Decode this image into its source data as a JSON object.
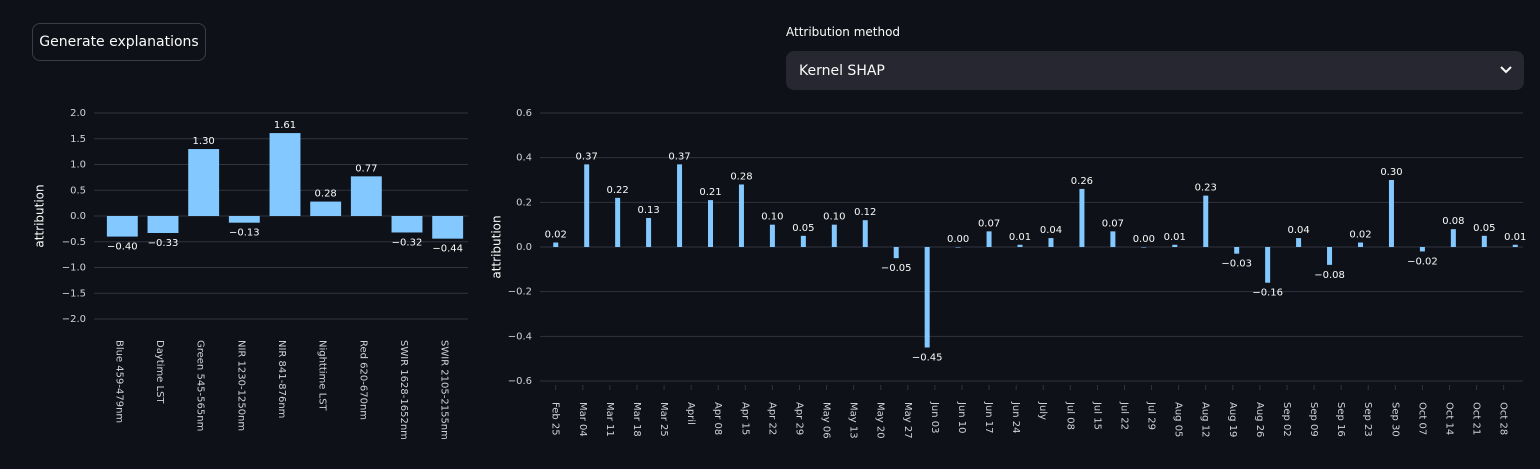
{
  "button": "Generate explanations",
  "select": {
    "label": "Attribution method",
    "value": "Kernel SHAP"
  },
  "chart_data": [
    {
      "type": "bar",
      "y_label": "attribution",
      "color": "#83c9ff",
      "grid": true,
      "categories": [
        "Blue 459-479nm",
        "Daytime LST",
        "Green 545-565nm",
        "NIR 1230-1250nm",
        "NIR 841-876nm",
        "Nighttime LST",
        "Red 620-670nm",
        "SWIR 1628-1652nm",
        "SWIR 2105-2155nm"
      ],
      "values": [
        -0.4,
        -0.33,
        1.3,
        -0.13,
        1.61,
        0.28,
        0.77,
        -0.32,
        -0.44
      ],
      "value_labels": [
        "−0.40",
        "−0.33",
        "1.30",
        "−0.13",
        "1.61",
        "0.28",
        "0.77",
        "−0.32",
        "−0.44"
      ],
      "ylim": [
        -2,
        2
      ],
      "yticks": [
        {
          "value": 2,
          "label": "2.0"
        },
        1.5,
        {
          "value": 1,
          "label": "1.0"
        },
        0.5,
        {
          "value": 0,
          "label": "0.0"
        },
        {
          "value": -0.5,
          "label": "−0.5"
        },
        {
          "value": -1,
          "label": "−1.0"
        },
        {
          "value": -1.5,
          "label": "−1.5"
        },
        {
          "value": -2,
          "label": "−2.0"
        }
      ]
    },
    {
      "type": "timebar",
      "y_label": "attribution",
      "color": "#83c9ff",
      "grid": true,
      "x": [
        0,
        8,
        16,
        24,
        32,
        40,
        48,
        56,
        64,
        72,
        80,
        88,
        96,
        104,
        112,
        120,
        128,
        136,
        144,
        152,
        160,
        168,
        176,
        184,
        192,
        200,
        208,
        216,
        224,
        232,
        240,
        248
      ],
      "values": [
        0.02,
        0.37,
        0.22,
        0.13,
        0.37,
        0.21,
        0.28,
        0.1,
        0.05,
        0.1,
        0.12,
        -0.05,
        -0.45,
        0.0,
        0.07,
        0.01,
        0.04,
        0.26,
        0.07,
        0.0,
        0.01,
        0.23,
        -0.03,
        -0.16,
        0.04,
        -0.08,
        0.02,
        0.3,
        -0.02,
        0.08,
        0.05,
        0.01
      ],
      "value_labels": [
        "0.02",
        "0.37",
        "0.22",
        "0.13",
        "0.37",
        "0.21",
        "0.28",
        "0.10",
        "0.05",
        "0.10",
        "0.12",
        "−0.05",
        "−0.45",
        "0.00",
        "0.07",
        "0.01",
        "0.04",
        "0.26",
        "0.07",
        "0.00",
        "0.01",
        "0.23",
        "−0.03",
        "−0.16",
        "0.04",
        "−0.08",
        "0.02",
        "0.30",
        "−0.02",
        "0.08",
        "0.05",
        "0.01"
      ],
      "xlim": [
        -2,
        250
      ],
      "xticks": [
        {
          "value": 0,
          "label": "Feb 25"
        },
        {
          "value": 7,
          "label": "Mar 04"
        },
        {
          "value": 14,
          "label": "Mar 11"
        },
        {
          "value": 21,
          "label": "Mar 18"
        },
        {
          "value": 28,
          "label": "Mar 25"
        },
        {
          "value": 35,
          "label": "April"
        },
        {
          "value": 42,
          "label": "Apr 08"
        },
        {
          "value": 49,
          "label": "Apr 15"
        },
        {
          "value": 56,
          "label": "Apr 22"
        },
        {
          "value": 63,
          "label": "Apr 29"
        },
        {
          "value": 70,
          "label": "May 06"
        },
        {
          "value": 77,
          "label": "May 13"
        },
        {
          "value": 84,
          "label": "May 20"
        },
        {
          "value": 91,
          "label": "May 27"
        },
        {
          "value": 98,
          "label": "Jun 03"
        },
        {
          "value": 105,
          "label": "Jun 10"
        },
        {
          "value": 112,
          "label": "Jun 17"
        },
        {
          "value": 119,
          "label": "Jun 24"
        },
        {
          "value": 126,
          "label": "July"
        },
        {
          "value": 133,
          "label": "Jul 08"
        },
        {
          "value": 140,
          "label": "Jul 15"
        },
        {
          "value": 147,
          "label": "Jul 22"
        },
        {
          "value": 154,
          "label": "Jul 29"
        },
        {
          "value": 161,
          "label": "Aug 05"
        },
        {
          "value": 168,
          "label": "Aug 12"
        },
        {
          "value": 175,
          "label": "Aug 19"
        },
        {
          "value": 182,
          "label": "Aug 26"
        },
        {
          "value": 189,
          "label": "Sep 02"
        },
        {
          "value": 196,
          "label": "Sep 09"
        },
        {
          "value": 203,
          "label": "Sep 16"
        },
        {
          "value": 210,
          "label": "Sep 23"
        },
        {
          "value": 217,
          "label": "Sep 30"
        },
        {
          "value": 224,
          "label": "Oct 07"
        },
        {
          "value": 231,
          "label": "Oct 14"
        },
        {
          "value": 238,
          "label": "Oct 21"
        },
        {
          "value": 245,
          "label": "Oct 28"
        }
      ],
      "ylim": [
        -0.6,
        0.6
      ],
      "yticks": [
        0.6,
        0.4,
        0.2,
        {
          "value": 0,
          "label": "0.0"
        },
        {
          "value": -0.2,
          "label": "−0.2"
        },
        {
          "value": -0.4,
          "label": "−0.4"
        },
        {
          "value": -0.6,
          "label": "−0.6"
        }
      ]
    }
  ]
}
